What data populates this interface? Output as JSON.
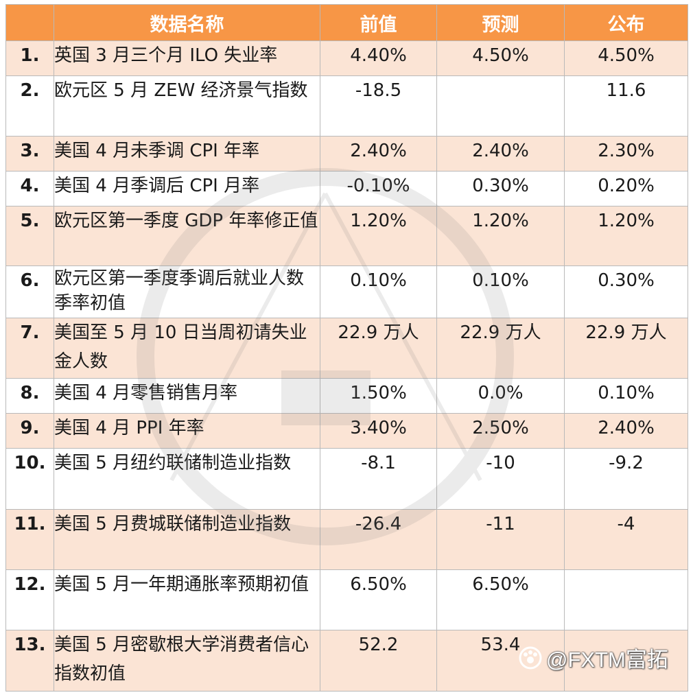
{
  "table": {
    "headers": [
      "",
      "数据名称",
      "前值",
      "预测",
      "公布"
    ],
    "rows": [
      {
        "num": "1.",
        "name": "英国 3 月三个月 ILO 失业率",
        "previous": "4.40%",
        "forecast": "4.50%",
        "actual": "4.50%"
      },
      {
        "num": "2.",
        "name": "欧元区 5 月 ZEW 经济景气指数",
        "previous": "-18.5",
        "forecast": "",
        "actual": "11.6"
      },
      {
        "num": "3.",
        "name": "美国 4 月未季调 CPI 年率",
        "previous": "2.40%",
        "forecast": "2.40%",
        "actual": "2.30%"
      },
      {
        "num": "4.",
        "name": " 美国 4 月季调后 CPI 月率",
        "previous": "-0.10%",
        "forecast": "0.30%",
        "actual": "0.20%"
      },
      {
        "num": "5.",
        "name": " 欧元区第一季度 GDP 年率修正值",
        "previous": "1.20%",
        "forecast": "1.20%",
        "actual": "1.20%"
      },
      {
        "num": "6.",
        "name": "欧元区第一季度季调后就业人数季率初值",
        "previous": "0.10%",
        "forecast": "0.10%",
        "actual": "0.30%"
      },
      {
        "num": "7.",
        "name": "美国至 5 月 10 日当周初请失业金人数",
        "previous": "22.9 万人",
        "forecast": "22.9 万人",
        "actual": "22.9 万人"
      },
      {
        "num": "8.",
        "name": "美国 4 月零售销售月率",
        "previous": "1.50%",
        "forecast": "0.0%",
        "actual": "0.10%"
      },
      {
        "num": "9.",
        "name": "美国 4 月 PPI 年率",
        "previous": "3.40%",
        "forecast": "2.50%",
        "actual": "2.40%"
      },
      {
        "num": "10.",
        "name": "美国 5 月纽约联储制造业指数",
        "previous": "-8.1",
        "forecast": "-10",
        "actual": "-9.2"
      },
      {
        "num": "11.",
        "name": "美国 5 月费城联储制造业指数",
        "previous": "-26.4",
        "forecast": "-11",
        "actual": "-4"
      },
      {
        "num": "12.",
        "name": "美国 5 月一年期通胀率预期初值",
        "previous": "6.50%",
        "forecast": "6.50%",
        "actual": ""
      },
      {
        "num": "13.",
        "name": "美国 5 月密歇根大学消费者信心指数初值",
        "previous": "52.2",
        "forecast": "53.4",
        "actual": ""
      }
    ]
  },
  "credit": {
    "text": "@FXTM富拓",
    "icon": "paw-icon"
  },
  "colors": {
    "header_bg": "#f79646",
    "row_alt_bg": "#fbe4d5",
    "actual_text": "#ff1a1a"
  }
}
